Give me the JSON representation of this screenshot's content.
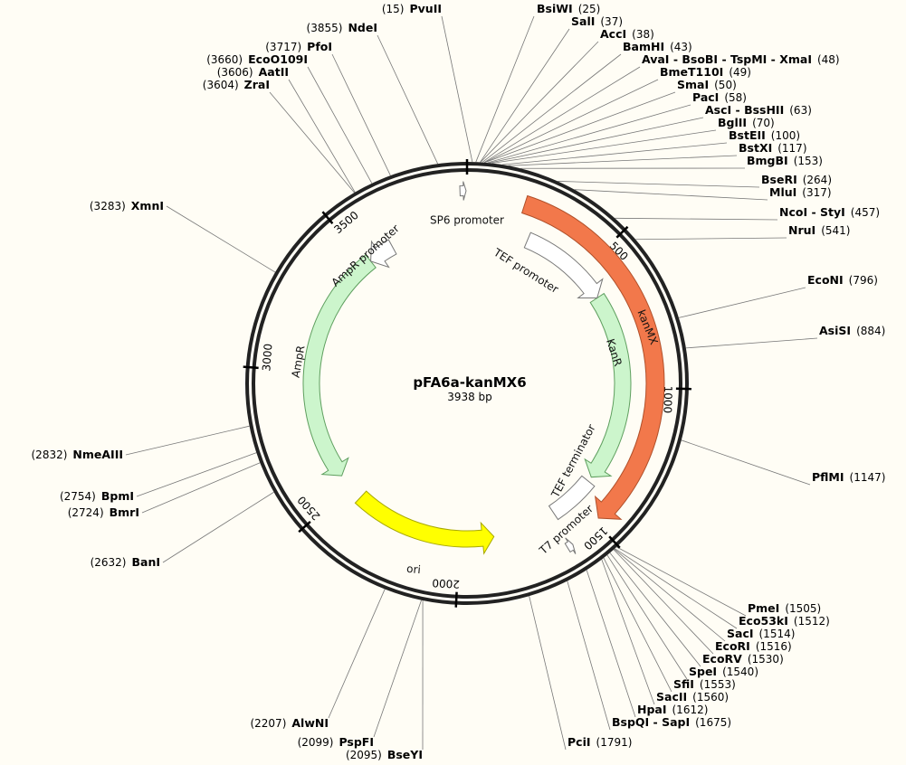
{
  "plasmid": {
    "name": "pFA6a-kanMX6",
    "size_label": "3938 bp",
    "length": 3938
  },
  "ticks": [
    {
      "bp": 0,
      "label": ""
    },
    {
      "bp": 500,
      "label": "500"
    },
    {
      "bp": 1000,
      "label": "1000"
    },
    {
      "bp": 1500,
      "label": "1500"
    },
    {
      "bp": 2000,
      "label": "2000"
    },
    {
      "bp": 2500,
      "label": "2500"
    },
    {
      "bp": 3000,
      "label": "3000"
    },
    {
      "bp": 3500,
      "label": "3500"
    }
  ],
  "features": [
    {
      "id": "kanmx",
      "label": "kanMX",
      "start": 195,
      "end": 1485,
      "direction": "cw",
      "ring": "outer",
      "color": "#f2784b",
      "stroke": "#b0502a"
    },
    {
      "id": "kanr",
      "label": "KanR",
      "start": 620,
      "end": 1390,
      "direction": "cw",
      "ring": "mid",
      "color": "#ccf5cc",
      "stroke": "#5f9f5f"
    },
    {
      "id": "tef-promoter",
      "label": "TEF promoter",
      "start": 250,
      "end": 620,
      "direction": "cw",
      "ring": "mid",
      "color": "#ffffff",
      "stroke": "#777777"
    },
    {
      "id": "tef-terminator",
      "label": "TEF terminator",
      "start": 1410,
      "end": 1600,
      "direction": "none",
      "ring": "mid",
      "color": "#ffffff",
      "stroke": "#777777"
    },
    {
      "id": "ampr",
      "label": "AmpR",
      "start": 2555,
      "end": 3520,
      "direction": "ccw",
      "ring": "mid",
      "color": "#ccf5cc",
      "stroke": "#5f9f5f"
    },
    {
      "id": "ampr-promoter",
      "label": "AmpR promoter",
      "start": 3520,
      "end": 3625,
      "direction": "ccw",
      "ring": "mid",
      "color": "#ffffff",
      "stroke": "#777777"
    },
    {
      "id": "ori",
      "label": "ori",
      "start": 1860,
      "end": 2440,
      "direction": "ccw",
      "ring": "mid",
      "color": "#ffff00",
      "stroke": "#a8a800"
    },
    {
      "id": "sp6-promoter",
      "label": "SP6 promoter",
      "start": 3915,
      "end": 3935,
      "direction": "cw",
      "ring": "inner",
      "color": "#ffffff",
      "stroke": "#777777"
    },
    {
      "id": "t7-promoter",
      "label": "T7 promoter",
      "start": 1605,
      "end": 1625,
      "direction": "ccw",
      "ring": "inner",
      "color": "#ffffff",
      "stroke": "#777777"
    }
  ],
  "sites": [
    {
      "name": "PvuII",
      "pos": "(15)",
      "bp": 15
    },
    {
      "name": "BsiWI",
      "pos": "(25)",
      "bp": 25
    },
    {
      "name": "SalI",
      "pos": "(37)",
      "bp": 37
    },
    {
      "name": "AccI",
      "pos": "(38)",
      "bp": 38
    },
    {
      "name": "BamHI",
      "pos": "(43)",
      "bp": 43
    },
    {
      "name": "AvaI - BsoBI - TspMI - XmaI",
      "pos": "(48)",
      "bp": 48
    },
    {
      "name": "BmeT110I",
      "pos": "(49)",
      "bp": 49
    },
    {
      "name": "SmaI",
      "pos": "(50)",
      "bp": 50
    },
    {
      "name": "PacI",
      "pos": "(58)",
      "bp": 58
    },
    {
      "name": "AscI - BssHII",
      "pos": "(63)",
      "bp": 63
    },
    {
      "name": "BglII",
      "pos": "(70)",
      "bp": 70
    },
    {
      "name": "BstEII",
      "pos": "(100)",
      "bp": 100
    },
    {
      "name": "BstXI",
      "pos": "(117)",
      "bp": 117
    },
    {
      "name": "BmgBI",
      "pos": "(153)",
      "bp": 153
    },
    {
      "name": "BseRI",
      "pos": "(264)",
      "bp": 264
    },
    {
      "name": "MluI",
      "pos": "(317)",
      "bp": 317
    },
    {
      "name": "NcoI - StyI",
      "pos": "(457)",
      "bp": 457
    },
    {
      "name": "NruI",
      "pos": "(541)",
      "bp": 541
    },
    {
      "name": "EcoNI",
      "pos": "(796)",
      "bp": 796
    },
    {
      "name": "AsiSI",
      "pos": "(884)",
      "bp": 884
    },
    {
      "name": "PflMI",
      "pos": "(1147)",
      "bp": 1147
    },
    {
      "name": "PmeI",
      "pos": "(1505)",
      "bp": 1505
    },
    {
      "name": "Eco53kI",
      "pos": "(1512)",
      "bp": 1512
    },
    {
      "name": "SacI",
      "pos": "(1514)",
      "bp": 1514
    },
    {
      "name": "EcoRI",
      "pos": "(1516)",
      "bp": 1516
    },
    {
      "name": "EcoRV",
      "pos": "(1530)",
      "bp": 1530
    },
    {
      "name": "SpeI",
      "pos": "(1540)",
      "bp": 1540
    },
    {
      "name": "SfiI",
      "pos": "(1553)",
      "bp": 1553
    },
    {
      "name": "SacII",
      "pos": "(1560)",
      "bp": 1560
    },
    {
      "name": "HpaI",
      "pos": "(1612)",
      "bp": 1612
    },
    {
      "name": "BspQI - SapI",
      "pos": "(1675)",
      "bp": 1675
    },
    {
      "name": "PciI",
      "pos": "(1791)",
      "bp": 1791
    },
    {
      "name": "BseYI",
      "pos": "(2095)",
      "bp": 2095
    },
    {
      "name": "PspFI",
      "pos": "(2099)",
      "bp": 2099
    },
    {
      "name": "AlwNI",
      "pos": "(2207)",
      "bp": 2207
    },
    {
      "name": "BanI",
      "pos": "(2632)",
      "bp": 2632
    },
    {
      "name": "BmrI",
      "pos": "(2724)",
      "bp": 2724
    },
    {
      "name": "BpmI",
      "pos": "(2754)",
      "bp": 2754
    },
    {
      "name": "NmeAIII",
      "pos": "(2832)",
      "bp": 2832
    },
    {
      "name": "XmnI",
      "pos": "(3283)",
      "bp": 3283
    },
    {
      "name": "ZraI",
      "pos": "(3604)",
      "bp": 3604
    },
    {
      "name": "AatII",
      "pos": "(3606)",
      "bp": 3606
    },
    {
      "name": "EcoO109I",
      "pos": "(3660)",
      "bp": 3660
    },
    {
      "name": "PfoI",
      "pos": "(3717)",
      "bp": 3717
    },
    {
      "name": "NdeI",
      "pos": "(3855)",
      "bp": 3855
    }
  ]
}
